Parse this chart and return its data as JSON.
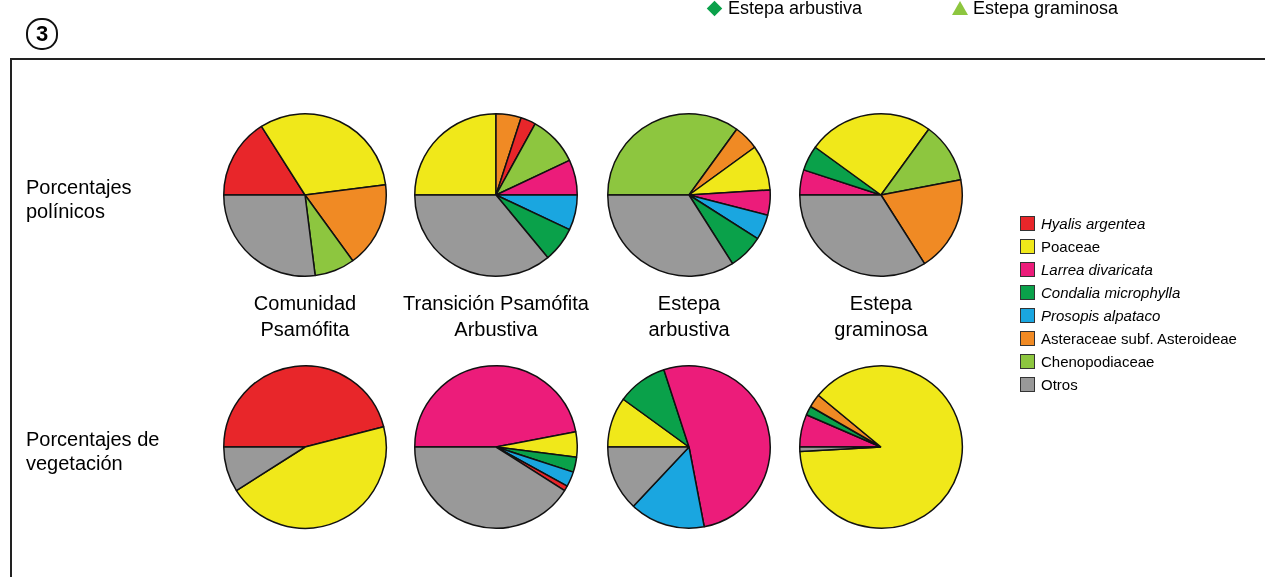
{
  "chart_data": [
    {
      "type": "pie",
      "title": "Comunidad Psamófita",
      "ylabel": "Porcentajes polínicos",
      "categories": [
        null,
        null,
        null,
        null,
        null
      ],
      "values": [
        16,
        32,
        17,
        8,
        27
      ],
      "colors": [
        "#e8262a",
        "#f0e81a",
        "#f08a24",
        "#8dc63f",
        "#999999"
      ]
    },
    {
      "type": "pie",
      "title": "Transición Psamófita Arbustiva",
      "categories": [
        null,
        null,
        null,
        null,
        null,
        null,
        null,
        null
      ],
      "values": [
        25,
        5,
        3,
        10,
        7,
        7,
        7,
        36
      ],
      "colors": [
        "#f0e81a",
        "#f08a24",
        "#e8262a",
        "#8dc63f",
        "#ec1c7a",
        "#1aa6e0",
        "#0aa14a",
        "#999999"
      ]
    },
    {
      "type": "pie",
      "title": "Estepa arbustiva",
      "categories": [
        null,
        null,
        null,
        null,
        null,
        null,
        null
      ],
      "values": [
        35,
        5,
        9,
        5,
        5,
        7,
        34
      ],
      "colors": [
        "#8dc63f",
        "#f08a24",
        "#f0e81a",
        "#ec1c7a",
        "#1aa6e0",
        "#0aa14a",
        "#999999"
      ]
    },
    {
      "type": "pie",
      "title": "Estepa graminosa",
      "categories": [
        null,
        null,
        null,
        null,
        null,
        null
      ],
      "values": [
        5,
        5,
        25,
        12,
        19,
        34
      ],
      "colors": [
        "#ec1c7a",
        "#0aa14a",
        "#f0e81a",
        "#8dc63f",
        "#f08a24",
        "#999999"
      ]
    },
    {
      "type": "pie",
      "ylabel": "Porcentajes de vegetación",
      "categories": [
        null,
        null,
        null
      ],
      "values": [
        46,
        45,
        9
      ],
      "colors": [
        "#e8262a",
        "#f0e81a",
        "#999999"
      ]
    },
    {
      "type": "pie",
      "categories": [
        null,
        null,
        null,
        null,
        null,
        null
      ],
      "values": [
        47,
        5,
        3,
        3,
        1,
        41
      ],
      "colors": [
        "#ec1c7a",
        "#f0e81a",
        "#0aa14a",
        "#1aa6e0",
        "#e8262a",
        "#999999"
      ]
    },
    {
      "type": "pie",
      "categories": [
        null,
        null,
        null,
        null,
        null
      ],
      "values": [
        10,
        10,
        52,
        15,
        13
      ],
      "colors": [
        "#f0e81a",
        "#0aa14a",
        "#ec1c7a",
        "#1aa6e0",
        "#999999"
      ]
    },
    {
      "type": "pie",
      "categories": [
        null,
        null,
        null,
        null,
        null
      ],
      "values": [
        6.5,
        1.8,
        2.7,
        88.1,
        0.9
      ],
      "colors": [
        "#ec1c7a",
        "#0aa14a",
        "#f08a24",
        "#f0e81a",
        "#999999"
      ]
    },
    {
      "type": "other",
      "categories": [
        "Hyalis argentea",
        "Poaceae",
        "Larrea divaricata",
        "Condalia microphylla",
        "Prosopis alpataco",
        "Asteraceae subf. Asteroideae",
        "Chenopodiaceae",
        "Otros"
      ],
      "colors": [
        "#e8262a",
        "#f0e81a",
        "#ec1c7a",
        "#0aa14a",
        "#1aa6e0",
        "#f08a24",
        "#8dc63f",
        "#999999"
      ],
      "annotations": [
        "3",
        "Estepa arbustiva",
        "Estepa graminosa"
      ]
    }
  ]
}
